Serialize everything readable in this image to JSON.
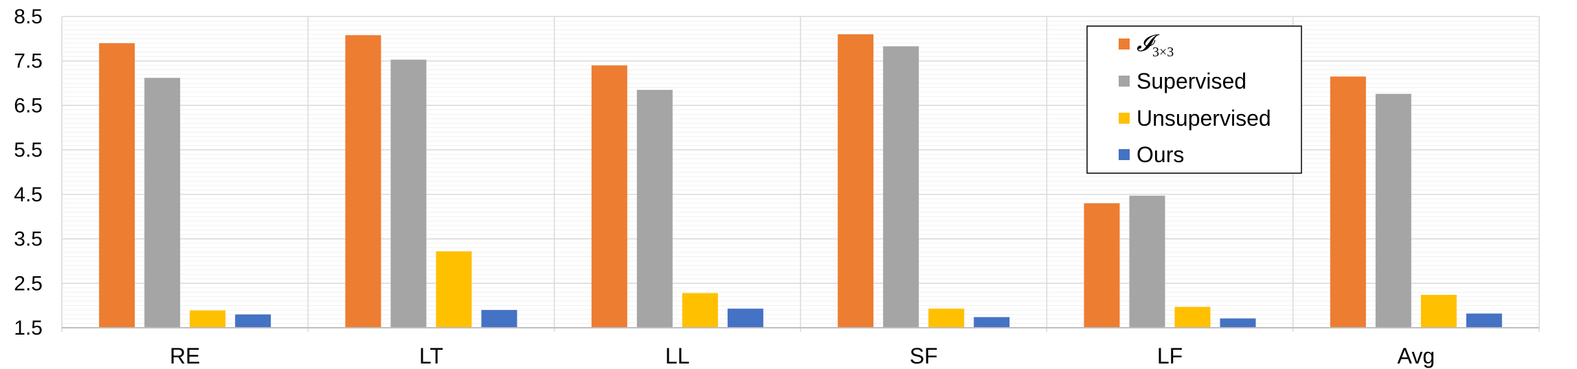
{
  "chart_data": {
    "type": "bar",
    "categories": [
      "RE",
      "LT",
      "LL",
      "SF",
      "LF",
      "Avg"
    ],
    "series": [
      {
        "name": "𝓘3×3",
        "color": "#ED7D31",
        "values": [
          7.9,
          8.08,
          7.4,
          8.1,
          4.3,
          7.15
        ]
      },
      {
        "name": "Supervised",
        "color": "#A5A5A5",
        "values": [
          7.12,
          7.53,
          6.85,
          7.83,
          4.47,
          6.76
        ]
      },
      {
        "name": "Unsupervised",
        "color": "#FFC000",
        "values": [
          1.89,
          3.22,
          2.28,
          1.93,
          1.97,
          2.24
        ]
      },
      {
        "name": "Ours",
        "color": "#4472C4",
        "values": [
          1.8,
          1.9,
          1.93,
          1.74,
          1.71,
          1.82
        ]
      }
    ],
    "legend_title_parts": {
      "script": "𝓘",
      "subscript": "3×3"
    },
    "ylim": [
      1.5,
      8.5
    ],
    "yticks": [
      "8.5",
      "7.5",
      "6.5",
      "5.5",
      "4.5",
      "3.5",
      "2.5",
      "1.5"
    ],
    "ytick_values": [
      8.5,
      7.5,
      6.5,
      5.5,
      4.5,
      3.5,
      2.5,
      1.5
    ],
    "title": "",
    "xlabel": "",
    "ylabel": "",
    "grid": true,
    "legend_position": "top-right"
  }
}
